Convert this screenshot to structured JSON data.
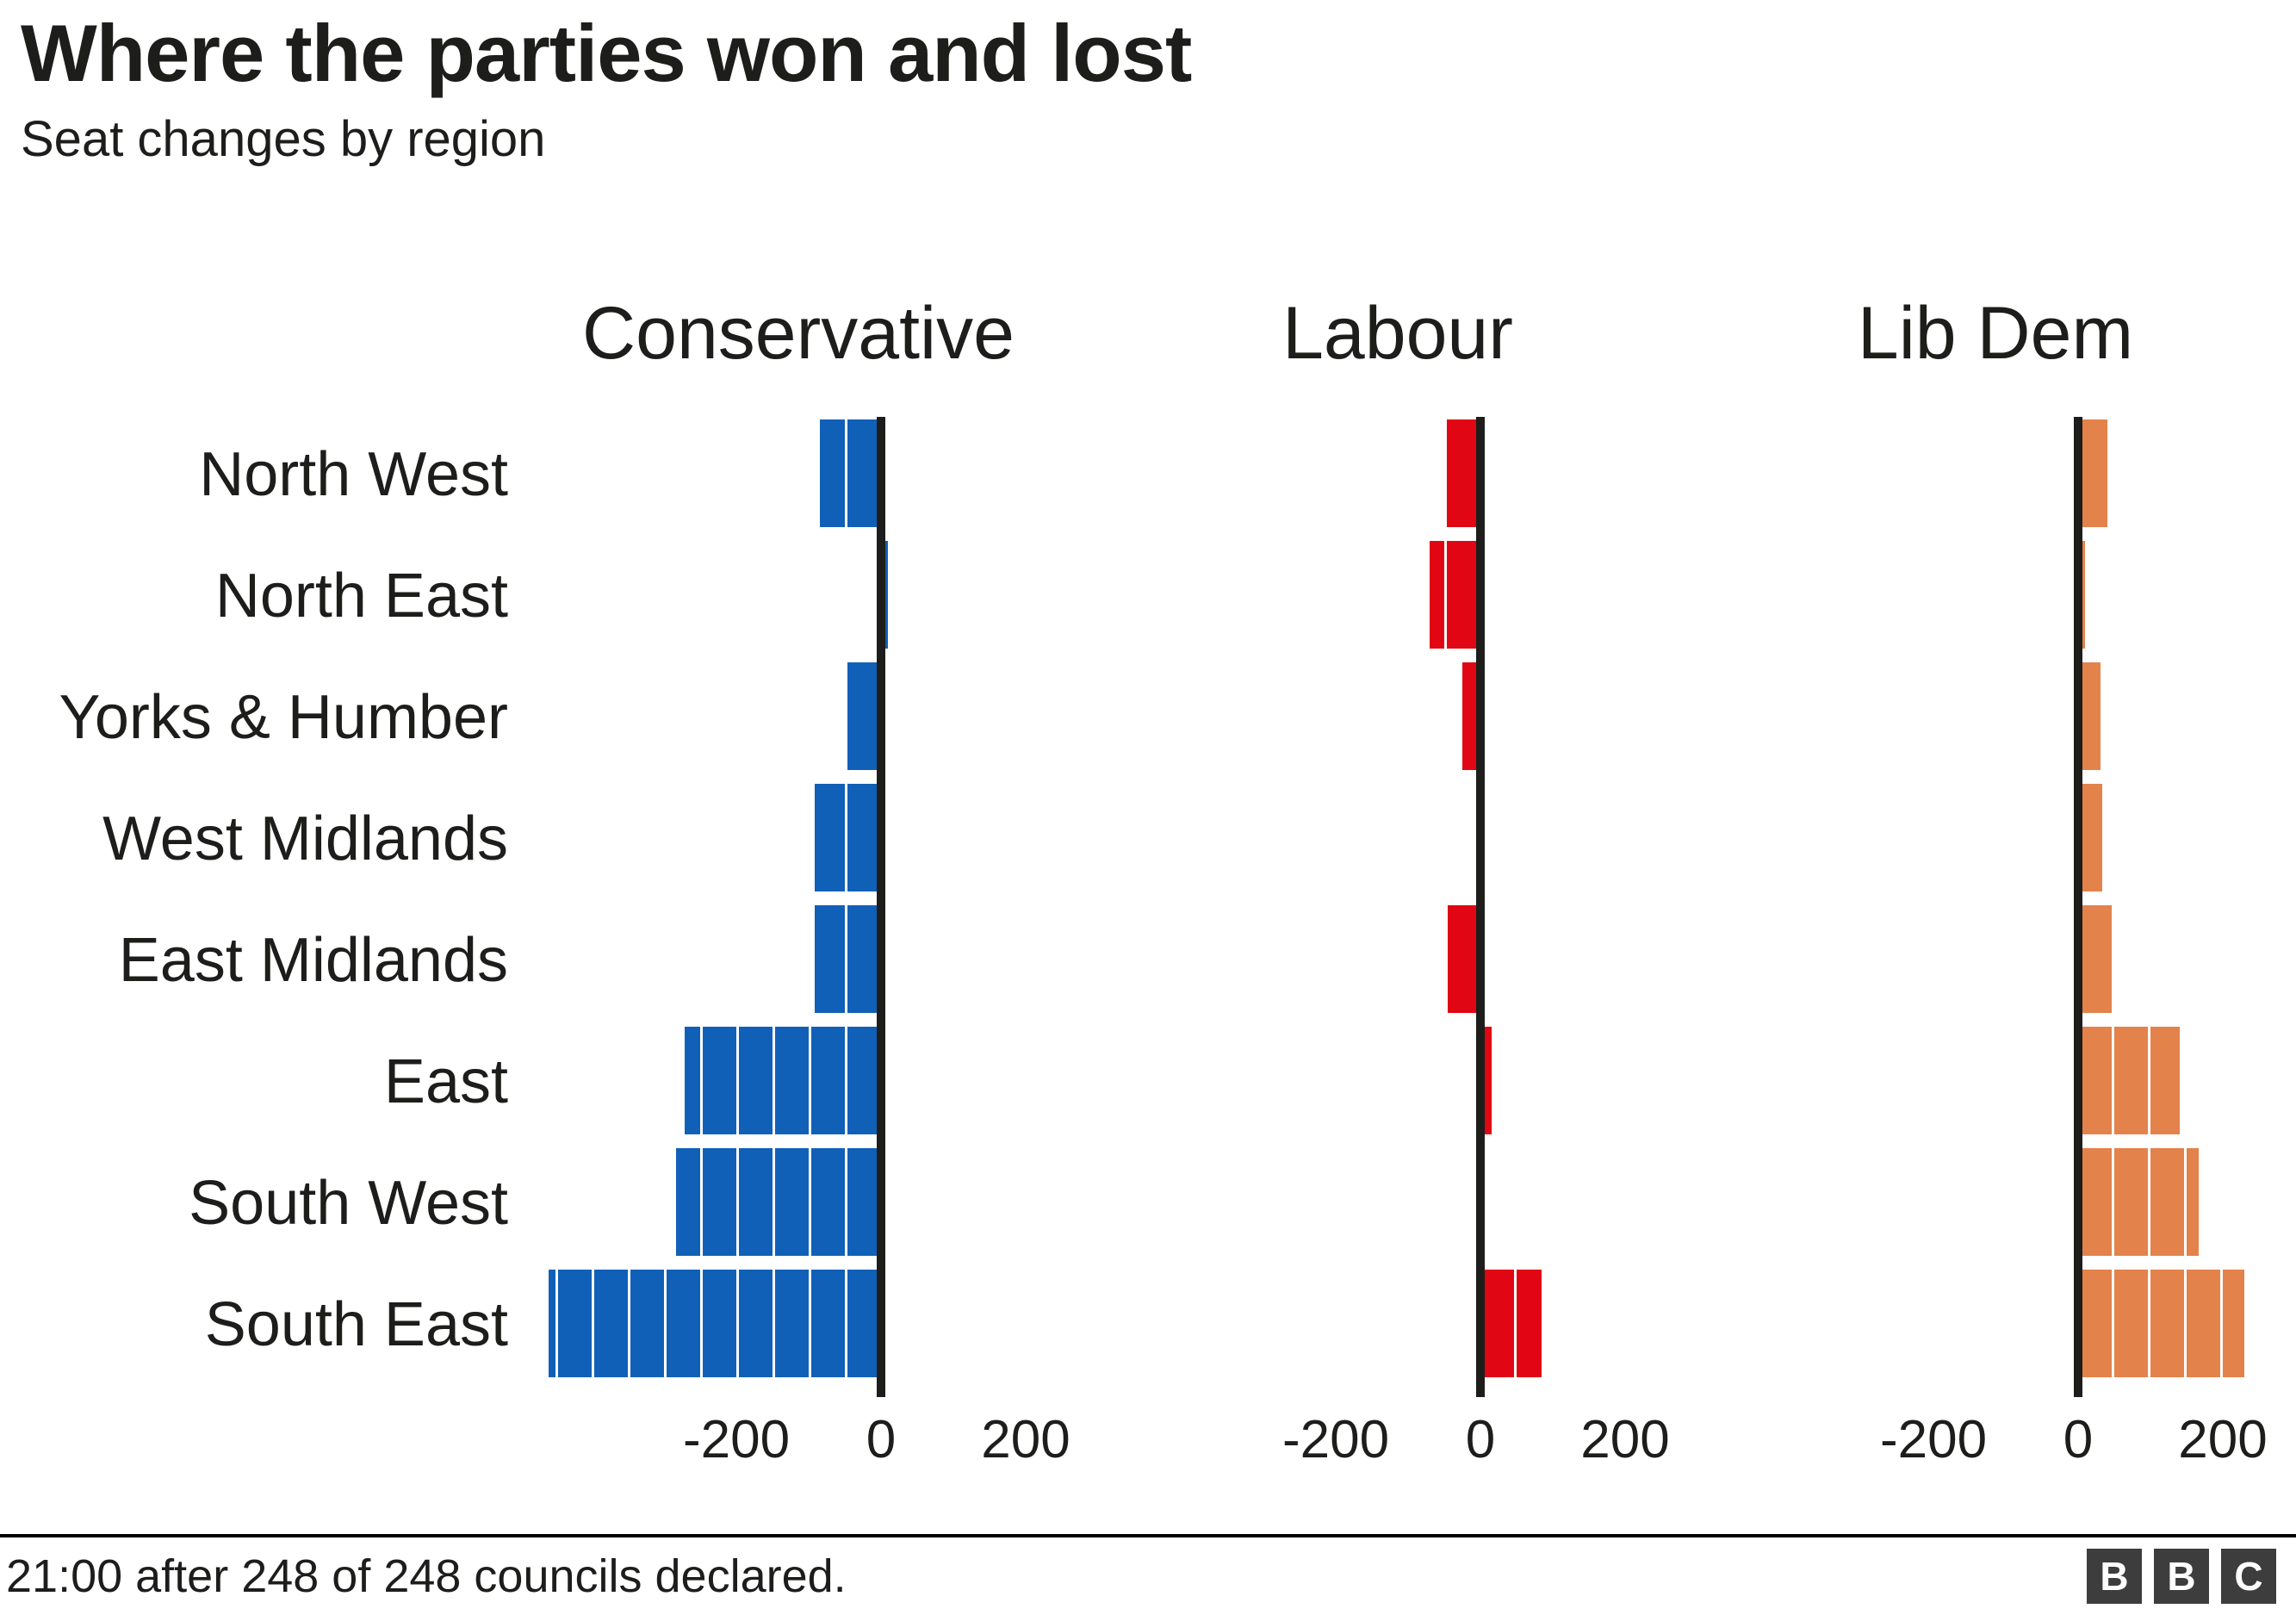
{
  "title": "Where the parties won and lost",
  "subtitle": "Seat changes by region",
  "footer": {
    "note": "21:00 after 248 of 248 councils declared.",
    "logo_letters": [
      "B",
      "B",
      "C"
    ]
  },
  "chart_data": {
    "type": "bar",
    "orientation": "horizontal-diverging",
    "title": "Where the parties won and lost",
    "subtitle": "Seat changes by region",
    "categories": [
      "North West",
      "North East",
      "Yorks & Humber",
      "West Midlands",
      "East Midlands",
      "East",
      "South West",
      "South East"
    ],
    "series": [
      {
        "name": "Conservative",
        "color": "#1160B8",
        "values": [
          -85,
          10,
          -47,
          -92,
          -92,
          -272,
          -283,
          -460
        ]
      },
      {
        "name": "Labour",
        "color": "#E00613",
        "values": [
          -47,
          -70,
          -25,
          0,
          -45,
          16,
          0,
          85
        ]
      },
      {
        "name": "Lib Dem",
        "color": "#E3824B",
        "values": [
          40,
          10,
          31,
          33,
          48,
          140,
          167,
          230
        ]
      }
    ],
    "x_ticks": [
      -200,
      0,
      200
    ],
    "xlim": [
      -471,
      243
    ],
    "segment_unit": 50,
    "grid": false,
    "legend_position": "panel-headers",
    "axis_color": "#1D1D1B",
    "text_color": "#1D1D1B",
    "segment_divider_color": "#FFFFFF"
  }
}
